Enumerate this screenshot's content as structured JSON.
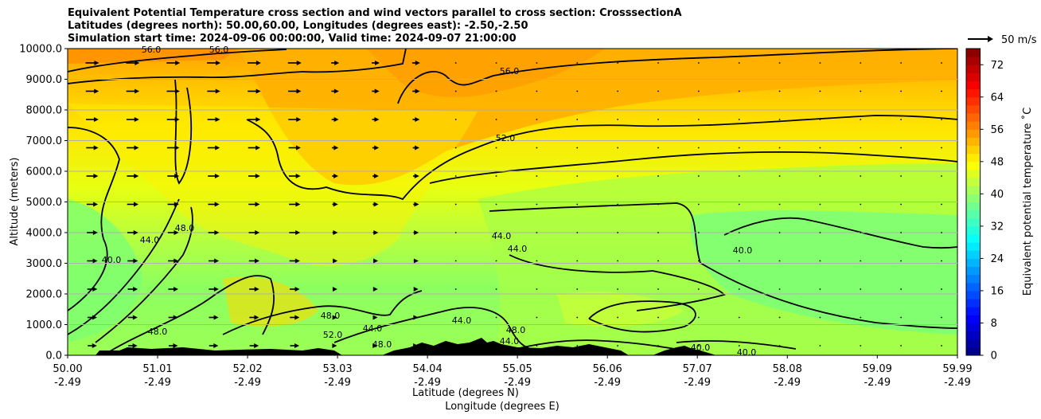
{
  "title_lines": [
    "Equivalent Potential Temperature cross section and wind vectors parallel to cross section: CrosssectionA",
    "Latitudes (degrees north): 50.00,60.00, Longitudes (degrees east): -2.50,-2.50",
    "Simulation start time: 2024-09-06 00:00:00, Valid time: 2024-09-07 21:00:00"
  ],
  "quiver_key_label": "50 m/s",
  "chart_data": {
    "type": "heatmap",
    "title": "Equivalent Potential Temperature cross section and wind vectors parallel to cross section: CrosssectionA",
    "ylabel": "Altitude (meters)",
    "xlabel_lines": [
      "Latitude (degrees N)",
      "Longitude (degrees E)"
    ],
    "ylim": [
      0,
      10000
    ],
    "y_ticks": [
      "0.0",
      "1000.0",
      "2000.0",
      "3000.0",
      "4000.0",
      "5000.0",
      "6000.0",
      "7000.0",
      "8000.0",
      "9000.0",
      "10000.0"
    ],
    "x_ticks": [
      {
        "lat": "50.00",
        "lon": "-2.49"
      },
      {
        "lat": "51.01",
        "lon": "-2.49"
      },
      {
        "lat": "52.02",
        "lon": "-2.49"
      },
      {
        "lat": "53.03",
        "lon": "-2.49"
      },
      {
        "lat": "54.04",
        "lon": "-2.49"
      },
      {
        "lat": "55.05",
        "lon": "-2.49"
      },
      {
        "lat": "56.06",
        "lon": "-2.49"
      },
      {
        "lat": "57.07",
        "lon": "-2.49"
      },
      {
        "lat": "58.08",
        "lon": "-2.49"
      },
      {
        "lat": "59.09",
        "lon": "-2.49"
      },
      {
        "lat": "59.99",
        "lon": "-2.49"
      }
    ],
    "grid": true,
    "colorbar": {
      "label": "Equivalent potential temperature $^\\circ$C",
      "label_display": "Equivalent potential temperature ˚C",
      "range": [
        0,
        76
      ],
      "ticks": [
        "0",
        "8",
        "16",
        "24",
        "32",
        "40",
        "48",
        "56",
        "64",
        "72"
      ]
    },
    "contour_labels": [
      "56.0",
      "56.0",
      "56.0",
      "52.0",
      "48.0",
      "44.0",
      "40.0",
      "40.0",
      "44.0",
      "44.0",
      "48.0",
      "48.0",
      "52.0",
      "44.0",
      "48.0",
      "44.0",
      "48.0",
      "44.0",
      "40.0",
      "40.0"
    ]
  }
}
